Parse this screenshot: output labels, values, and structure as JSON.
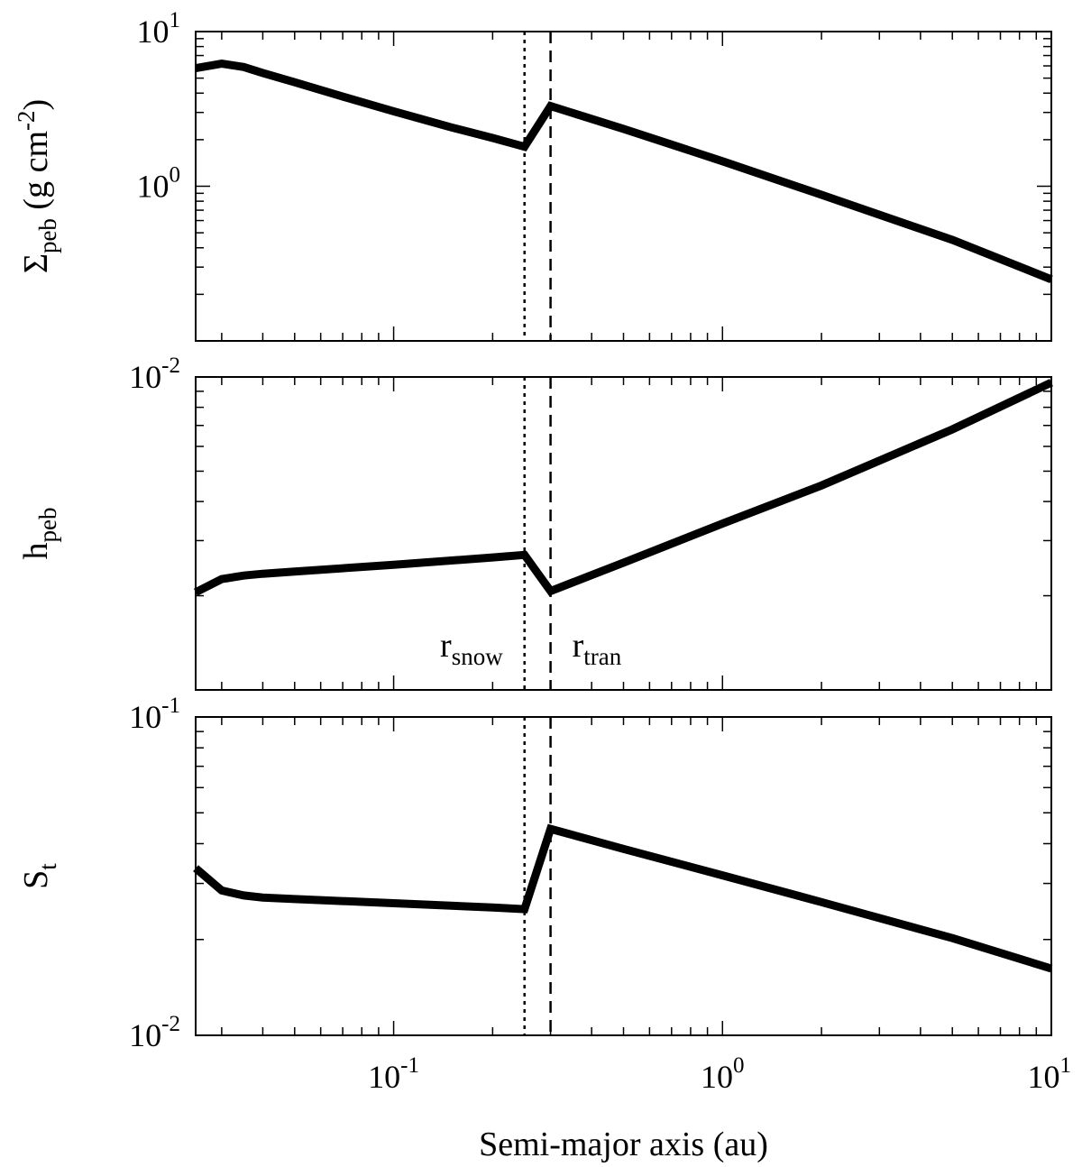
{
  "chart_data": [
    {
      "type": "line",
      "panel": "top",
      "ylabel": {
        "main": "Σ",
        "sub": "peb",
        "rest": " (g cm",
        "sup": "-2",
        "close": ")"
      },
      "xlim": [
        0.025,
        10
      ],
      "ylim": [
        0.1,
        10
      ],
      "yscale": "log",
      "xscale": "log",
      "ytick_labels": [
        {
          "base": "10",
          "exp": "1",
          "value": 10
        },
        {
          "base": "10",
          "exp": "0",
          "value": 1
        }
      ],
      "series": [
        {
          "x": [
            0.025,
            0.03,
            0.035,
            0.04,
            0.05,
            0.07,
            0.1,
            0.15,
            0.2,
            0.25,
            0.3,
            0.5,
            1,
            2,
            5,
            10
          ],
          "y": [
            5.8,
            6.2,
            5.9,
            5.4,
            4.7,
            3.8,
            3.05,
            2.4,
            2.05,
            1.8,
            3.3,
            2.35,
            1.45,
            0.88,
            0.45,
            0.25
          ]
        }
      ]
    },
    {
      "type": "line",
      "panel": "middle",
      "ylabel": {
        "main": "h",
        "sub": "peb"
      },
      "xlim": [
        0.025,
        10
      ],
      "ylim": [
        0.001,
        0.01
      ],
      "yscale": "log",
      "xscale": "log",
      "ytick_labels": [
        {
          "base": "10",
          "exp": "-2",
          "value": 0.01
        }
      ],
      "annotations": [
        {
          "main": "r",
          "sub": "snow",
          "x": 0.25
        },
        {
          "main": "r",
          "sub": "tran",
          "x": 0.3
        }
      ],
      "series": [
        {
          "x": [
            0.025,
            0.03,
            0.035,
            0.04,
            0.05,
            0.1,
            0.2,
            0.25,
            0.3,
            0.5,
            1,
            2,
            5,
            10
          ],
          "y": [
            0.00205,
            0.00226,
            0.00232,
            0.00235,
            0.00239,
            0.00251,
            0.00265,
            0.0027,
            0.00207,
            0.00255,
            0.0034,
            0.0045,
            0.0068,
            0.0096
          ]
        }
      ]
    },
    {
      "type": "line",
      "panel": "bottom",
      "ylabel": {
        "main": "S",
        "sub": "t"
      },
      "xlabel": "Semi-major axis (au)",
      "xlim": [
        0.025,
        10
      ],
      "ylim": [
        0.01,
        0.1
      ],
      "yscale": "log",
      "xscale": "log",
      "ytick_labels": [
        {
          "base": "10",
          "exp": "-1",
          "value": 0.1
        },
        {
          "base": "10",
          "exp": "-2",
          "value": 0.01
        }
      ],
      "xtick_labels": [
        {
          "base": "10",
          "exp": "-1",
          "value": 0.1
        },
        {
          "base": "10",
          "exp": "0",
          "value": 1
        },
        {
          "base": "10",
          "exp": "1",
          "value": 10
        }
      ],
      "series": [
        {
          "x": [
            0.025,
            0.03,
            0.035,
            0.04,
            0.05,
            0.1,
            0.2,
            0.25,
            0.3,
            0.5,
            1,
            2,
            5,
            10
          ],
          "y": [
            0.0335,
            0.0285,
            0.0275,
            0.0271,
            0.0268,
            0.026,
            0.0252,
            0.0249,
            0.0445,
            0.0385,
            0.0318,
            0.0262,
            0.0202,
            0.0162
          ]
        }
      ]
    }
  ],
  "vlines": [
    {
      "name": "snow-line",
      "x": 0.25,
      "style": "dotted"
    },
    {
      "name": "transition-line",
      "x": 0.3,
      "style": "dashed"
    }
  ]
}
